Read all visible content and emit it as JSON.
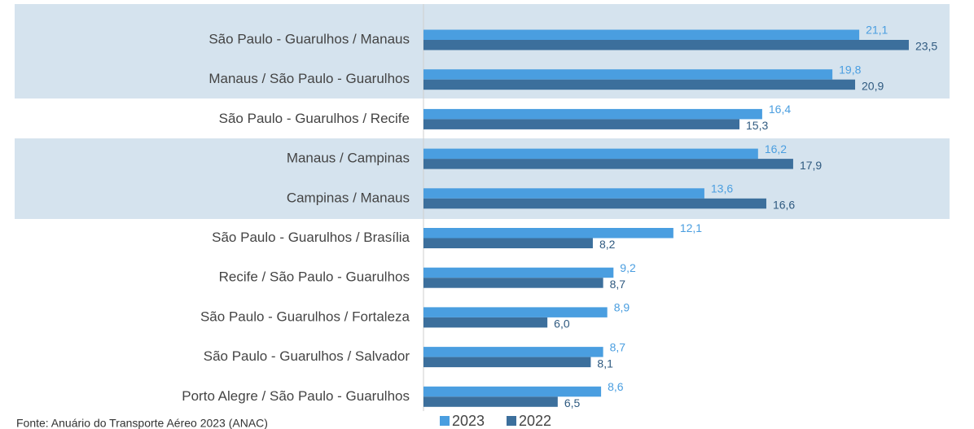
{
  "chart_data": {
    "type": "bar",
    "orientation": "horizontal",
    "categories": [
      "São Paulo - Guarulhos / Manaus",
      "Manaus / São Paulo - Guarulhos",
      "São Paulo - Guarulhos / Recife",
      "Manaus / Campinas",
      "Campinas / Manaus",
      "São Paulo - Guarulhos / Brasília",
      "Recife / São Paulo - Guarulhos",
      "São Paulo - Guarulhos / Fortaleza",
      "São Paulo - Guarulhos / Salvador",
      "Porto Alegre / São Paulo - Guarulhos"
    ],
    "series": [
      {
        "name": "2023",
        "color": "#4a9ee0",
        "values": [
          21.1,
          19.8,
          16.4,
          16.2,
          13.6,
          12.1,
          9.2,
          8.9,
          8.7,
          8.6
        ],
        "value_labels": [
          "21,1",
          "19,8",
          "16,4",
          "16,2",
          "13,6",
          "12,1",
          "9,2",
          "8,9",
          "8,7",
          "8,6"
        ]
      },
      {
        "name": "2022",
        "color": "#3c6f9c",
        "values": [
          23.5,
          20.9,
          15.3,
          17.9,
          16.6,
          8.2,
          8.7,
          6.0,
          8.1,
          6.5
        ],
        "value_labels": [
          "23,5",
          "20,9",
          "15,3",
          "17,9",
          "16,6",
          "8,2",
          "8,7",
          "6,0",
          "8,1",
          "6,5"
        ]
      }
    ],
    "xlim": [
      0,
      25
    ],
    "legend": "bottom",
    "source": "Fonte: Anuário do Transporte Aéreo 2023 (ANAC)"
  }
}
